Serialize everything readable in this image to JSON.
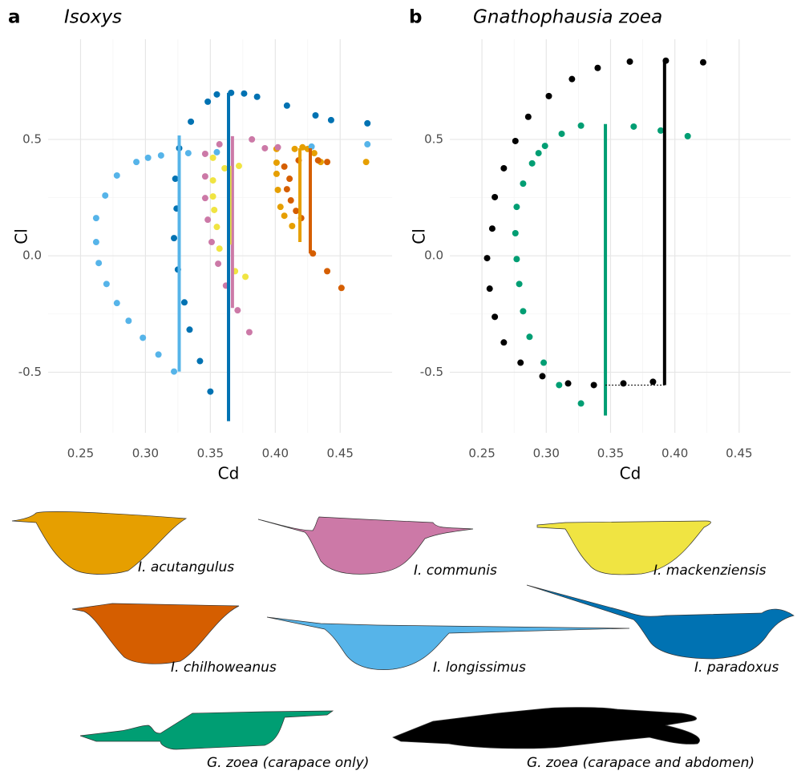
{
  "chart_data": [
    {
      "type": "scatter",
      "panel_label": "a",
      "title": "Isoxys",
      "x_label": "Cd",
      "y_label": "Cl",
      "xlim": [
        0.225,
        0.49
      ],
      "ylim": [
        -0.76,
        0.93
      ],
      "xticks": [
        0.25,
        {
          "value": 0.3,
          "label": "0.30"
        },
        0.35,
        {
          "value": 0.4,
          "label": "0.40"
        },
        0.45
      ],
      "yticks": [
        -0.5,
        {
          "value": 0,
          "label": "0.0"
        },
        0.5
      ],
      "grid": true,
      "series": [
        {
          "name": "I. acutangulus",
          "color": "#E69F00",
          "x": [
            0.401,
            0.401,
            0.401,
            0.402,
            0.404,
            0.407,
            0.413,
            0.415,
            0.421,
            0.425,
            0.43,
            0.435,
            0.47
          ],
          "y": [
            0.459,
            0.4,
            0.352,
            0.283,
            0.21,
            0.172,
            0.128,
            0.459,
            0.466,
            0.459,
            0.441,
            0.403,
            0.403
          ],
          "line_x": 0.419,
          "line_y": [
            0.462,
            0.059
          ]
        },
        {
          "name": "I. communis",
          "color": "#CC79A7",
          "x": [
            0.357,
            0.346,
            0.346,
            0.346,
            0.348,
            0.351,
            0.356,
            0.362,
            0.371,
            0.38,
            0.382,
            0.392,
            0.402
          ],
          "y": [
            0.479,
            0.438,
            0.341,
            0.248,
            0.155,
            0.059,
            -0.034,
            -0.128,
            -0.234,
            -0.328,
            0.5,
            0.462,
            0.466
          ],
          "line_x": 0.367,
          "line_y": [
            0.514,
            -0.224
          ]
        },
        {
          "name": "I. mackenziensis",
          "color": "#F0E442",
          "x": [
            0.352,
            0.352,
            0.352,
            0.353,
            0.355,
            0.357,
            0.369,
            0.377,
            0.372,
            0.361
          ],
          "y": [
            0.421,
            0.324,
            0.255,
            0.197,
            0.124,
            0.031,
            -0.066,
            -0.09,
            0.386,
            0.376
          ],
          "line_x": 0.365,
          "line_y": [
            0.386,
            0.048
          ]
        },
        {
          "name": "I. chilhoweanus",
          "color": "#D55E00",
          "x": [
            0.407,
            0.411,
            0.409,
            0.412,
            0.416,
            0.42,
            0.429,
            0.44,
            0.451,
            0.418,
            0.433,
            0.44
          ],
          "y": [
            0.383,
            0.331,
            0.286,
            0.238,
            0.193,
            0.162,
            0.01,
            -0.066,
            -0.138,
            0.41,
            0.41,
            0.403
          ],
          "line_x": 0.427,
          "line_y": [
            0.462,
            0.01
          ]
        },
        {
          "name": "I. longissimus",
          "color": "#56B4E9",
          "x": [
            0.262,
            0.262,
            0.264,
            0.269,
            0.27,
            0.278,
            0.287,
            0.298,
            0.31,
            0.322,
            0.278,
            0.293,
            0.302,
            0.312,
            0.333,
            0.355,
            0.428,
            0.471
          ],
          "y": [
            0.162,
            0.059,
            -0.031,
            0.259,
            -0.121,
            -0.203,
            -0.279,
            -0.352,
            -0.424,
            -0.497,
            0.345,
            0.403,
            0.421,
            0.431,
            0.441,
            0.445,
            0.469,
            0.479
          ],
          "line_x": 0.326,
          "line_y": [
            0.517,
            -0.497
          ]
        },
        {
          "name": "I. paradoxus",
          "color": "#0072B2",
          "x": [
            0.324,
            0.322,
            0.325,
            0.33,
            0.334,
            0.342,
            0.35,
            0.323,
            0.326,
            0.335,
            0.348,
            0.355,
            0.366,
            0.376,
            0.386,
            0.409,
            0.431,
            0.443,
            0.471
          ],
          "y": [
            0.203,
            0.076,
            -0.059,
            -0.2,
            -0.317,
            -0.452,
            -0.583,
            0.331,
            0.462,
            0.576,
            0.662,
            0.693,
            0.7,
            0.697,
            0.683,
            0.645,
            0.603,
            0.583,
            0.569
          ],
          "line_x": 0.364,
          "line_y": [
            0.7,
            -0.71
          ]
        }
      ]
    },
    {
      "type": "scatter",
      "panel_label": "b",
      "title": "Gnathophausia zoea",
      "x_label": "Cd",
      "y_label": "Cl",
      "xlim": [
        0.225,
        0.49
      ],
      "ylim": [
        -0.76,
        0.93
      ],
      "xticks": [
        0.25,
        {
          "value": 0.3,
          "label": "0.30"
        },
        0.35,
        {
          "value": 0.4,
          "label": "0.40"
        },
        0.45
      ],
      "yticks": [
        -0.5,
        {
          "value": 0,
          "label": "0.0"
        },
        0.5
      ],
      "grid": true,
      "series": [
        {
          "name": "G. zoea (carapace only)",
          "color": "#009E73",
          "x": [
            0.277,
            0.276,
            0.277,
            0.279,
            0.282,
            0.287,
            0.298,
            0.31,
            0.327,
            0.282,
            0.289,
            0.294,
            0.299,
            0.312,
            0.327,
            0.368,
            0.389,
            0.41
          ],
          "y": [
            0.21,
            0.097,
            -0.014,
            -0.121,
            -0.238,
            -0.348,
            -0.459,
            -0.555,
            -0.634,
            0.31,
            0.397,
            0.441,
            0.472,
            0.524,
            0.559,
            0.555,
            0.538,
            0.514
          ],
          "line_x": 0.346,
          "line_y": [
            0.566,
            -0.686
          ]
        },
        {
          "name": "G. zoea (carapace and abdomen)",
          "color": "#000000",
          "x": [
            0.254,
            0.256,
            0.26,
            0.267,
            0.28,
            0.297,
            0.317,
            0.337,
            0.36,
            0.383,
            0.258,
            0.26,
            0.267,
            0.276,
            0.286,
            0.302,
            0.32,
            0.34,
            0.365,
            0.393,
            0.422
          ],
          "y": [
            -0.01,
            -0.141,
            -0.262,
            -0.372,
            -0.459,
            -0.517,
            -0.548,
            -0.555,
            -0.548,
            -0.541,
            0.117,
            0.252,
            0.376,
            0.493,
            0.597,
            0.686,
            0.759,
            0.807,
            0.834,
            0.838,
            0.831
          ],
          "line_x": 0.392,
          "line_y": [
            0.838,
            -0.555
          ]
        }
      ]
    }
  ]
}
